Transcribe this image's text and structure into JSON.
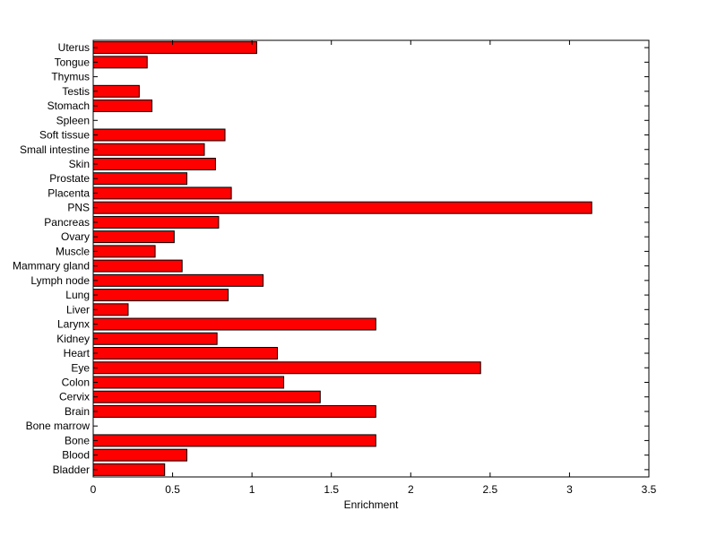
{
  "chart_data": {
    "type": "bar",
    "orientation": "horizontal",
    "title": "",
    "xlabel": "Enrichment",
    "ylabel": "",
    "xlim": [
      0,
      3.5
    ],
    "xticks": [
      0,
      0.5,
      1,
      1.5,
      2,
      2.5,
      3,
      3.5
    ],
    "xtick_labels": [
      "0",
      "0.5",
      "1",
      "1.5",
      "2",
      "2.5",
      "3",
      "3.5"
    ],
    "grid": false,
    "bar_color": "#ff0000",
    "categories": [
      "Bladder",
      "Blood",
      "Bone",
      "Bone marrow",
      "Brain",
      "Cervix",
      "Colon",
      "Eye",
      "Heart",
      "Kidney",
      "Larynx",
      "Liver",
      "Lung",
      "Lymph node",
      "Mammary gland",
      "Muscle",
      "Ovary",
      "Pancreas",
      "PNS",
      "Placenta",
      "Prostate",
      "Skin",
      "Small intestine",
      "Soft tissue",
      "Spleen",
      "Stomach",
      "Testis",
      "Thymus",
      "Tongue",
      "Uterus"
    ],
    "values": [
      0.45,
      0.59,
      1.78,
      0,
      1.78,
      1.43,
      1.2,
      2.44,
      1.16,
      0.78,
      1.78,
      0.22,
      0.85,
      1.07,
      0.56,
      0.39,
      0.51,
      0.79,
      3.14,
      0.87,
      0.59,
      0.77,
      0.7,
      0.83,
      0,
      0.37,
      0.29,
      0,
      0.34,
      1.03
    ]
  }
}
